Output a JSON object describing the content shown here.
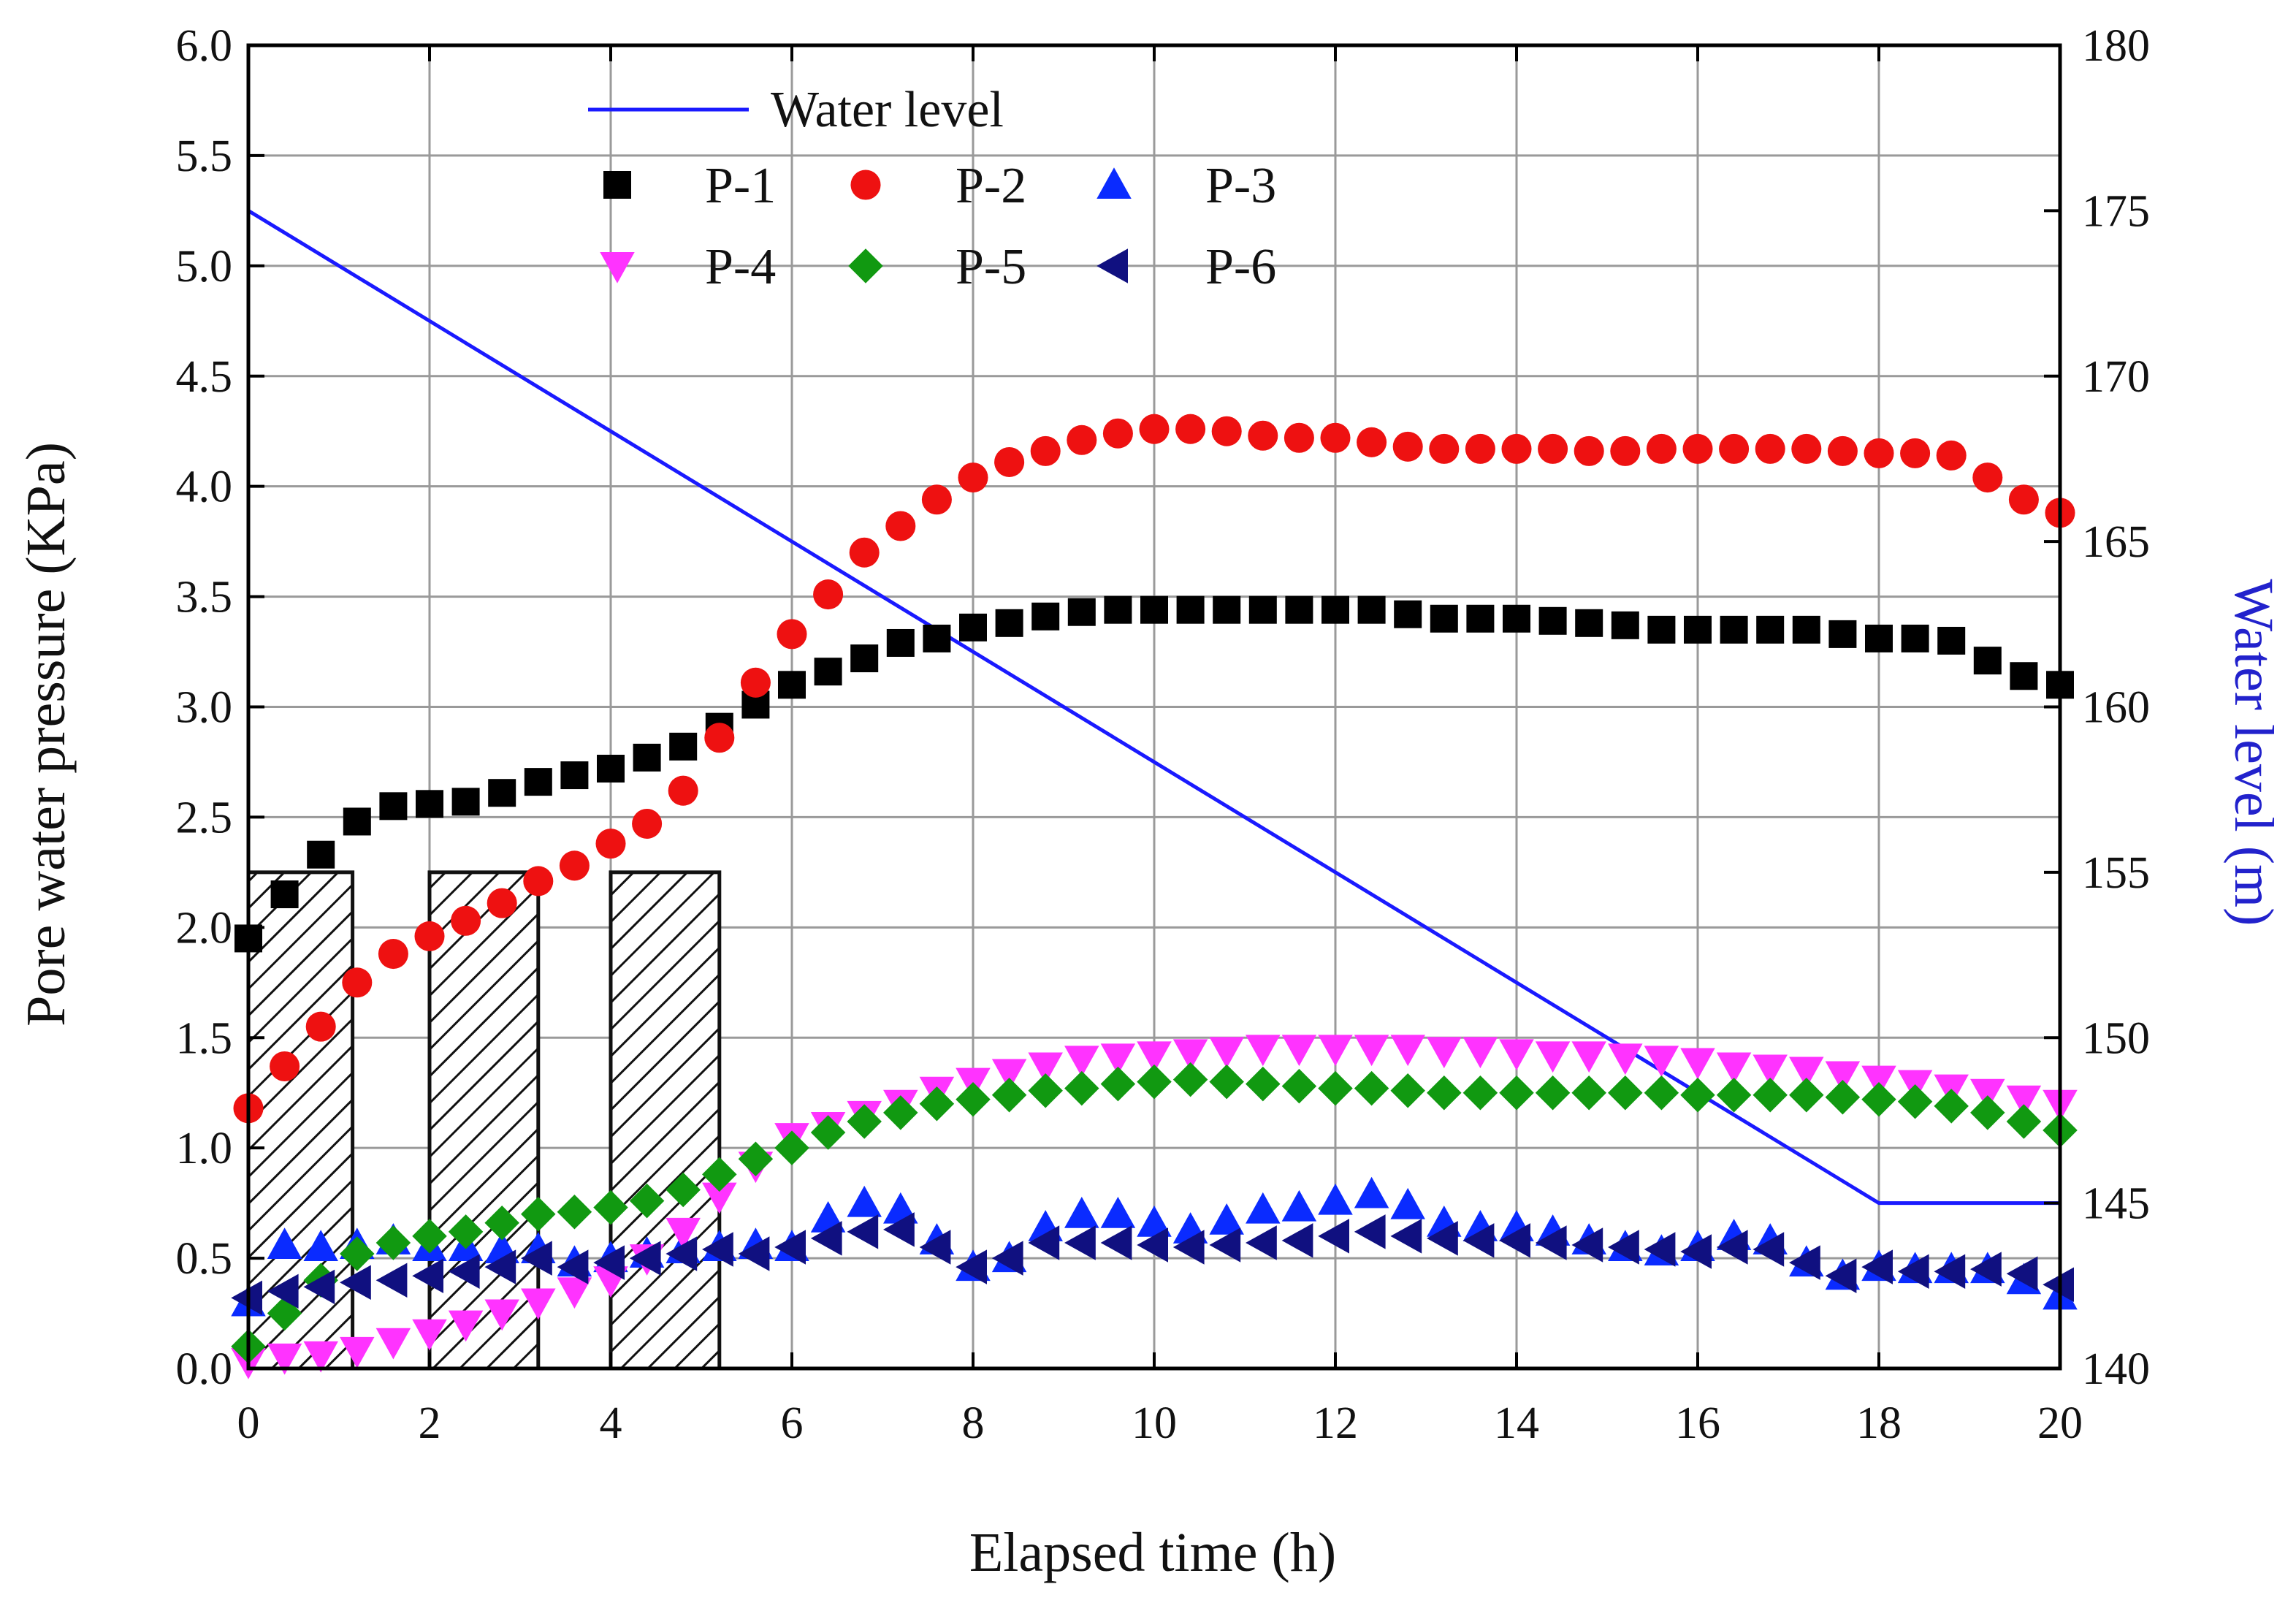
{
  "chart_data": {
    "type": "scatter",
    "xlabel": "Elapsed time (h)",
    "ylabel": "Pore water pressure (KPa)",
    "y2label": "Water level (m)",
    "xlim": [
      0,
      20
    ],
    "ylim": [
      0,
      6
    ],
    "y2lim": [
      140,
      180
    ],
    "xticks": [
      "0",
      "2",
      "4",
      "6",
      "8",
      "10",
      "12",
      "14",
      "16",
      "18",
      "20"
    ],
    "yticks": [
      "0.0",
      "0.5",
      "1.0",
      "1.5",
      "2.0",
      "2.5",
      "3.0",
      "3.5",
      "4.0",
      "4.5",
      "5.0",
      "5.5",
      "6.0"
    ],
    "y2ticks": [
      "140",
      "145",
      "150",
      "155",
      "160",
      "165",
      "170",
      "175",
      "180"
    ],
    "grid": true,
    "legend_position": "top-left",
    "hatched_bars": [
      {
        "x0": 0.0,
        "x1": 1.15,
        "height": 2.25
      },
      {
        "x0": 2.0,
        "x1": 3.2,
        "height": 2.25
      },
      {
        "x0": 4.0,
        "x1": 5.2,
        "height": 2.25
      }
    ],
    "water_level": {
      "name": "Water level",
      "color": "#1a1aff",
      "x": [
        0,
        18,
        20
      ],
      "y": [
        175,
        145,
        145
      ]
    },
    "series": [
      {
        "name": "P-1",
        "marker": "square",
        "color": "#000000",
        "x": [
          0,
          0.4,
          0.8,
          1.2,
          1.6,
          2,
          2.4,
          2.8,
          3.2,
          3.6,
          4,
          4.4,
          4.8,
          5.2,
          5.6,
          6,
          6.4,
          6.8,
          7.2,
          7.6,
          8,
          8.4,
          8.8,
          9.2,
          9.6,
          10,
          10.4,
          10.8,
          11.2,
          11.6,
          12,
          12.4,
          12.8,
          13.2,
          13.6,
          14,
          14.4,
          14.8,
          15.2,
          15.6,
          16,
          16.4,
          16.8,
          17.2,
          17.6,
          18,
          18.4,
          18.8,
          19.2,
          19.6,
          20
        ],
        "y": [
          1.95,
          2.15,
          2.33,
          2.48,
          2.55,
          2.56,
          2.57,
          2.61,
          2.66,
          2.69,
          2.72,
          2.77,
          2.82,
          2.91,
          3.01,
          3.1,
          3.16,
          3.22,
          3.29,
          3.31,
          3.36,
          3.38,
          3.41,
          3.43,
          3.44,
          3.44,
          3.44,
          3.44,
          3.44,
          3.44,
          3.44,
          3.44,
          3.42,
          3.4,
          3.4,
          3.4,
          3.39,
          3.38,
          3.37,
          3.35,
          3.35,
          3.35,
          3.35,
          3.35,
          3.33,
          3.31,
          3.31,
          3.3,
          3.21,
          3.14,
          3.1
        ]
      },
      {
        "name": "P-2",
        "marker": "circle",
        "color": "#ee1111",
        "x": [
          0,
          0.4,
          0.8,
          1.2,
          1.6,
          2,
          2.4,
          2.8,
          3.2,
          3.6,
          4,
          4.4,
          4.8,
          5.2,
          5.6,
          6,
          6.4,
          6.8,
          7.2,
          7.6,
          8,
          8.4,
          8.8,
          9.2,
          9.6,
          10,
          10.4,
          10.8,
          11.2,
          11.6,
          12,
          12.4,
          12.8,
          13.2,
          13.6,
          14,
          14.4,
          14.8,
          15.2,
          15.6,
          16,
          16.4,
          16.8,
          17.2,
          17.6,
          18,
          18.4,
          18.8,
          19.2,
          19.6,
          20
        ],
        "y": [
          1.18,
          1.37,
          1.55,
          1.75,
          1.88,
          1.96,
          2.03,
          2.11,
          2.21,
          2.28,
          2.38,
          2.47,
          2.62,
          2.86,
          3.11,
          3.33,
          3.51,
          3.7,
          3.82,
          3.94,
          4.04,
          4.11,
          4.16,
          4.21,
          4.24,
          4.26,
          4.26,
          4.25,
          4.23,
          4.22,
          4.22,
          4.2,
          4.18,
          4.17,
          4.17,
          4.17,
          4.17,
          4.16,
          4.16,
          4.17,
          4.17,
          4.17,
          4.17,
          4.17,
          4.16,
          4.15,
          4.15,
          4.14,
          4.04,
          3.94,
          3.88
        ]
      },
      {
        "name": "P-3",
        "marker": "triangle-up",
        "color": "#0a2bff",
        "x": [
          0,
          0.4,
          0.8,
          1.2,
          1.6,
          2,
          2.4,
          2.8,
          3.2,
          3.6,
          4,
          4.4,
          4.8,
          5.2,
          5.6,
          6,
          6.4,
          6.8,
          7.2,
          7.6,
          8,
          8.4,
          8.8,
          9.2,
          9.6,
          10,
          10.4,
          10.8,
          11.2,
          11.6,
          12,
          12.4,
          12.8,
          13.2,
          13.6,
          14,
          14.4,
          14.8,
          15.2,
          15.6,
          16,
          16.4,
          16.8,
          17.2,
          17.6,
          18,
          18.4,
          18.8,
          19.2,
          19.6,
          20
        ],
        "y": [
          0.3,
          0.56,
          0.55,
          0.56,
          0.58,
          0.55,
          0.55,
          0.54,
          0.54,
          0.48,
          0.5,
          0.52,
          0.54,
          0.55,
          0.56,
          0.55,
          0.68,
          0.75,
          0.72,
          0.58,
          0.46,
          0.5,
          0.64,
          0.7,
          0.7,
          0.66,
          0.63,
          0.67,
          0.72,
          0.73,
          0.76,
          0.79,
          0.74,
          0.66,
          0.64,
          0.64,
          0.62,
          0.58,
          0.55,
          0.53,
          0.55,
          0.6,
          0.58,
          0.48,
          0.42,
          0.46,
          0.45,
          0.45,
          0.45,
          0.4,
          0.33
        ]
      },
      {
        "name": "P-4",
        "marker": "triangle-down",
        "color": "#ff33ff",
        "x": [
          0,
          0.4,
          0.8,
          1.2,
          1.6,
          2,
          2.4,
          2.8,
          3.2,
          3.6,
          4,
          4.4,
          4.8,
          5.2,
          5.6,
          6,
          6.4,
          6.8,
          7.2,
          7.6,
          8,
          8.4,
          8.8,
          9.2,
          9.6,
          10,
          10.4,
          10.8,
          11.2,
          11.6,
          12,
          12.4,
          12.8,
          13.2,
          13.6,
          14,
          14.4,
          14.8,
          15.2,
          15.6,
          16,
          16.4,
          16.8,
          17.2,
          17.6,
          18,
          18.4,
          18.8,
          19.2,
          19.6,
          20
        ],
        "y": [
          0.03,
          0.05,
          0.06,
          0.08,
          0.12,
          0.16,
          0.2,
          0.25,
          0.3,
          0.35,
          0.4,
          0.5,
          0.62,
          0.78,
          0.92,
          1.05,
          1.1,
          1.15,
          1.2,
          1.26,
          1.3,
          1.34,
          1.37,
          1.4,
          1.41,
          1.42,
          1.43,
          1.44,
          1.45,
          1.45,
          1.45,
          1.45,
          1.45,
          1.44,
          1.44,
          1.43,
          1.42,
          1.42,
          1.41,
          1.4,
          1.39,
          1.37,
          1.36,
          1.35,
          1.33,
          1.31,
          1.29,
          1.27,
          1.25,
          1.22,
          1.2
        ]
      },
      {
        "name": "P-5",
        "marker": "diamond",
        "color": "#119911",
        "x": [
          0,
          0.4,
          0.8,
          1.2,
          1.6,
          2,
          2.4,
          2.8,
          3.2,
          3.6,
          4,
          4.4,
          4.8,
          5.2,
          5.6,
          6,
          6.4,
          6.8,
          7.2,
          7.6,
          8,
          8.4,
          8.8,
          9.2,
          9.6,
          10,
          10.4,
          10.8,
          11.2,
          11.6,
          12,
          12.4,
          12.8,
          13.2,
          13.6,
          14,
          14.4,
          14.8,
          15.2,
          15.6,
          16,
          16.4,
          16.8,
          17.2,
          17.6,
          18,
          18.4,
          18.8,
          19.2,
          19.6,
          20
        ],
        "y": [
          0.1,
          0.25,
          0.4,
          0.52,
          0.57,
          0.6,
          0.62,
          0.66,
          0.7,
          0.71,
          0.73,
          0.76,
          0.81,
          0.88,
          0.95,
          1.0,
          1.07,
          1.12,
          1.16,
          1.2,
          1.22,
          1.24,
          1.26,
          1.27,
          1.29,
          1.3,
          1.31,
          1.3,
          1.29,
          1.28,
          1.27,
          1.27,
          1.26,
          1.25,
          1.25,
          1.25,
          1.25,
          1.25,
          1.25,
          1.25,
          1.24,
          1.24,
          1.24,
          1.24,
          1.23,
          1.22,
          1.21,
          1.19,
          1.16,
          1.12,
          1.08
        ]
      },
      {
        "name": "P-6",
        "marker": "triangle-left",
        "color": "#101080",
        "x": [
          0,
          0.4,
          0.8,
          1.2,
          1.6,
          2,
          2.4,
          2.8,
          3.2,
          3.6,
          4,
          4.4,
          4.8,
          5.2,
          5.6,
          6,
          6.4,
          6.8,
          7.2,
          7.6,
          8,
          8.4,
          8.8,
          9.2,
          9.6,
          10,
          10.4,
          10.8,
          11.2,
          11.6,
          12,
          12.4,
          12.8,
          13.2,
          13.6,
          14,
          14.4,
          14.8,
          15.2,
          15.6,
          16,
          16.4,
          16.8,
          17.2,
          17.6,
          18,
          18.4,
          18.8,
          19.2,
          19.6,
          20
        ],
        "y": [
          0.32,
          0.35,
          0.37,
          0.39,
          0.4,
          0.42,
          0.44,
          0.46,
          0.5,
          0.46,
          0.48,
          0.5,
          0.52,
          0.54,
          0.52,
          0.55,
          0.59,
          0.62,
          0.63,
          0.55,
          0.46,
          0.5,
          0.57,
          0.57,
          0.57,
          0.56,
          0.55,
          0.56,
          0.57,
          0.58,
          0.6,
          0.62,
          0.6,
          0.59,
          0.58,
          0.58,
          0.57,
          0.56,
          0.55,
          0.54,
          0.53,
          0.55,
          0.54,
          0.48,
          0.42,
          0.46,
          0.44,
          0.44,
          0.45,
          0.43,
          0.38
        ]
      }
    ]
  }
}
